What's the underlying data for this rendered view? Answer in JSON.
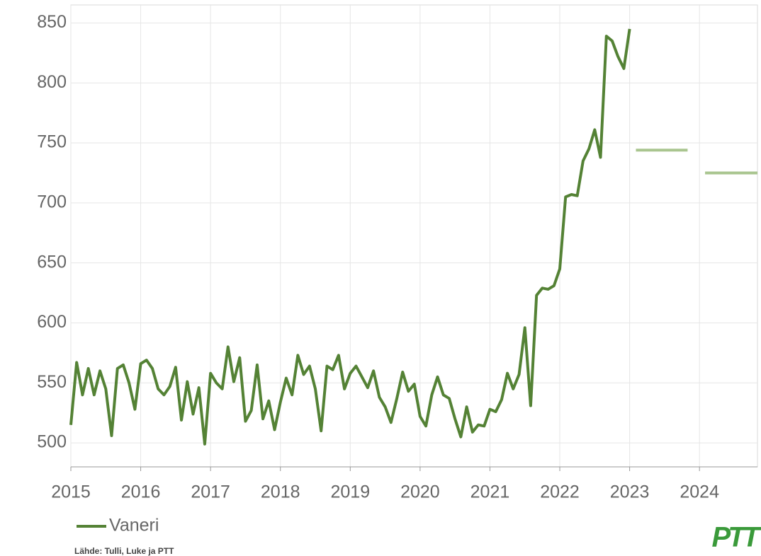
{
  "chart_data": {
    "type": "line",
    "x": [
      2015,
      2015.083,
      2015.167,
      2015.25,
      2015.333,
      2015.417,
      2015.5,
      2015.583,
      2015.667,
      2015.75,
      2015.833,
      2015.917,
      2016,
      2016.083,
      2016.167,
      2016.25,
      2016.333,
      2016.417,
      2016.5,
      2016.583,
      2016.667,
      2016.75,
      2016.833,
      2016.917,
      2017,
      2017.083,
      2017.167,
      2017.25,
      2017.333,
      2017.417,
      2017.5,
      2017.583,
      2017.667,
      2017.75,
      2017.833,
      2017.917,
      2018,
      2018.083,
      2018.167,
      2018.25,
      2018.333,
      2018.417,
      2018.5,
      2018.583,
      2018.667,
      2018.75,
      2018.833,
      2018.917,
      2019,
      2019.083,
      2019.167,
      2019.25,
      2019.333,
      2019.417,
      2019.5,
      2019.583,
      2019.667,
      2019.75,
      2019.833,
      2019.917,
      2020,
      2020.083,
      2020.167,
      2020.25,
      2020.333,
      2020.417,
      2020.5,
      2020.583,
      2020.667,
      2020.75,
      2020.833,
      2020.917,
      2021,
      2021.083,
      2021.167,
      2021.25,
      2021.333,
      2021.417,
      2021.5,
      2021.583,
      2021.667,
      2021.75,
      2021.833,
      2021.917,
      2022,
      2022.083,
      2022.167,
      2022.25,
      2022.333,
      2022.417,
      2022.5,
      2022.583,
      2022.667,
      2022.75,
      2022.833,
      2022.917,
      2023
    ],
    "series": [
      {
        "name": "Vaneri",
        "color": "#548235",
        "values": [
          515,
          567,
          540,
          562,
          540,
          560,
          545,
          506,
          562,
          565,
          550,
          528,
          566,
          569,
          562,
          545,
          540,
          547,
          563,
          519,
          551,
          524,
          546,
          499,
          558,
          550,
          545,
          580,
          551,
          571,
          518,
          527,
          565,
          520,
          535,
          511,
          534,
          554,
          540,
          573,
          557,
          564,
          545,
          510,
          564,
          561,
          573,
          545,
          558,
          564,
          555,
          546,
          560,
          538,
          530,
          517,
          537,
          559,
          543,
          549,
          522,
          514,
          540,
          555,
          540,
          537,
          520,
          505,
          530,
          509,
          515,
          514,
          528,
          526,
          536,
          558,
          545,
          557,
          596,
          531,
          623,
          629,
          628,
          631,
          645,
          705,
          707,
          706,
          735,
          745,
          761,
          738,
          839,
          835,
          822,
          812,
          845
        ]
      }
    ],
    "forecast": {
      "color": "#a9c58f",
      "segments": [
        {
          "x": [
            2023.09,
            2023.83
          ],
          "value": 744
        },
        {
          "x": [
            2024.08,
            2024.83
          ],
          "value": 725
        }
      ]
    },
    "xlim": [
      2015,
      2024.83
    ],
    "ylim": [
      480,
      865
    ],
    "xticks": [
      2015,
      2016,
      2017,
      2018,
      2019,
      2020,
      2021,
      2022,
      2023,
      2024
    ],
    "yticks": [
      500,
      550,
      600,
      650,
      700,
      750,
      800,
      850
    ],
    "grid": true,
    "source": "Lähde: Tulli, Luke ja PTT",
    "logo": "PTT"
  }
}
